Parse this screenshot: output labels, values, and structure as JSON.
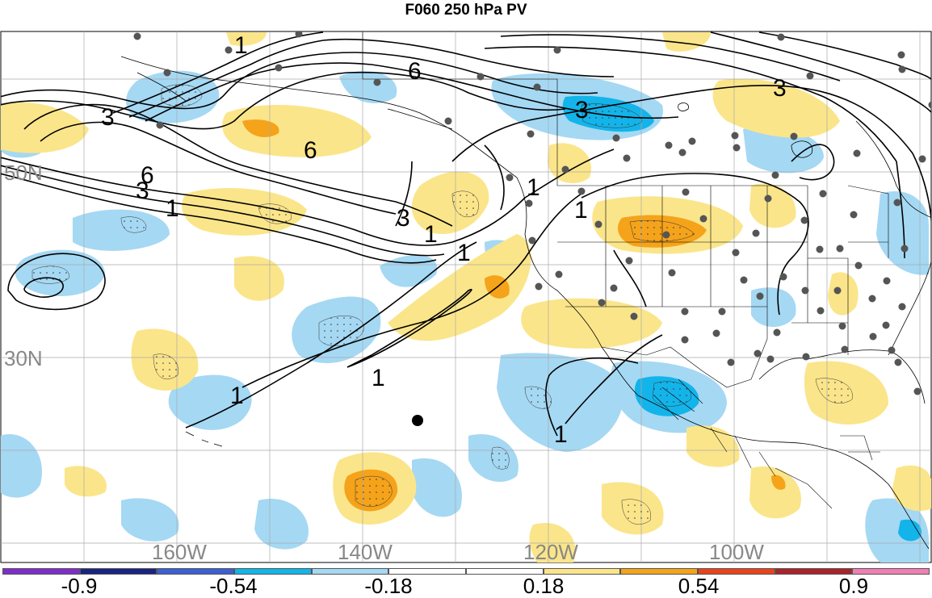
{
  "title": "F060 250 hPa PV",
  "lat_labels": [
    "50N",
    "30N"
  ],
  "lon_labels": [
    "160W",
    "140W",
    "120W",
    "100W"
  ],
  "contour_labels": [
    "1",
    "3",
    "6"
  ],
  "colorbar": {
    "colors": [
      "#7f2fc8",
      "#1a237e",
      "#3d5fd0",
      "#13b4ea",
      "#a5d8f3",
      "#ffffff",
      "#ffffff",
      "#fbe58a",
      "#f5a31a",
      "#e8431c",
      "#a8232a",
      "#f07fb4"
    ],
    "labels": [
      "-0.9",
      "-0.54",
      "-0.18",
      "0.18",
      "0.54",
      "0.9"
    ]
  },
  "icons": [
    "station-dot-icon"
  ]
}
